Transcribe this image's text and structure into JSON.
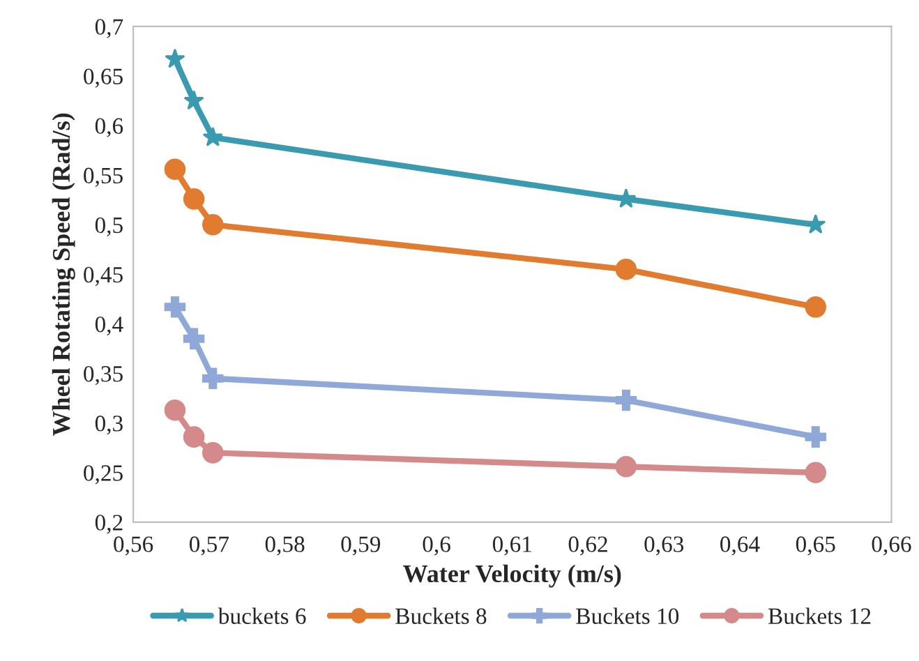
{
  "chart_data": {
    "type": "line",
    "xlabel": "Water Velocity (m/s)",
    "ylabel": "Wheel Rotating Speed (Rad/s)",
    "x": [
      0.5655,
      0.568,
      0.5705,
      0.625,
      0.65
    ],
    "series": [
      {
        "name": "buckets 6",
        "color": "#3a9ab0",
        "marker": "star",
        "values": [
          0.667,
          0.625,
          0.588,
          0.526,
          0.5
        ]
      },
      {
        "name": "Buckets 8",
        "color": "#e07b2f",
        "marker": "circle",
        "values": [
          0.556,
          0.526,
          0.5,
          0.455,
          0.417
        ]
      },
      {
        "name": "Buckets 10",
        "color": "#8fa8d8",
        "marker": "cross",
        "values": [
          0.417,
          0.385,
          0.345,
          0.323,
          0.286
        ]
      },
      {
        "name": "Buckets 12",
        "color": "#d48a8a",
        "marker": "circle",
        "values": [
          0.313,
          0.286,
          0.27,
          0.256,
          0.25
        ]
      }
    ],
    "xlim": [
      0.56,
      0.66
    ],
    "xticks": [
      {
        "value": 0.56,
        "label": "0,56"
      },
      {
        "value": 0.57,
        "label": "0,57"
      },
      {
        "value": 0.58,
        "label": "0,58"
      },
      {
        "value": 0.59,
        "label": "0,59"
      },
      {
        "value": 0.6,
        "label": "0,6"
      },
      {
        "value": 0.61,
        "label": "0,61"
      },
      {
        "value": 0.62,
        "label": "0,62"
      },
      {
        "value": 0.63,
        "label": "0,63"
      },
      {
        "value": 0.64,
        "label": "0,64"
      },
      {
        "value": 0.65,
        "label": "0,65"
      },
      {
        "value": 0.66,
        "label": "0,66"
      }
    ],
    "ylim": [
      0.2,
      0.7
    ],
    "yticks": [
      {
        "value": 0.2,
        "label": "0,2"
      },
      {
        "value": 0.25,
        "label": "0,25"
      },
      {
        "value": 0.3,
        "label": "0,3"
      },
      {
        "value": 0.35,
        "label": "0,35"
      },
      {
        "value": 0.4,
        "label": "0,4"
      },
      {
        "value": 0.45,
        "label": "0,45"
      },
      {
        "value": 0.5,
        "label": "0,5"
      },
      {
        "value": 0.55,
        "label": "0,55"
      },
      {
        "value": 0.6,
        "label": "0,6"
      },
      {
        "value": 0.65,
        "label": "0,65"
      },
      {
        "value": 0.7,
        "label": "0,7"
      }
    ],
    "grid": false,
    "legend": "bottom",
    "line_style": "solid"
  }
}
